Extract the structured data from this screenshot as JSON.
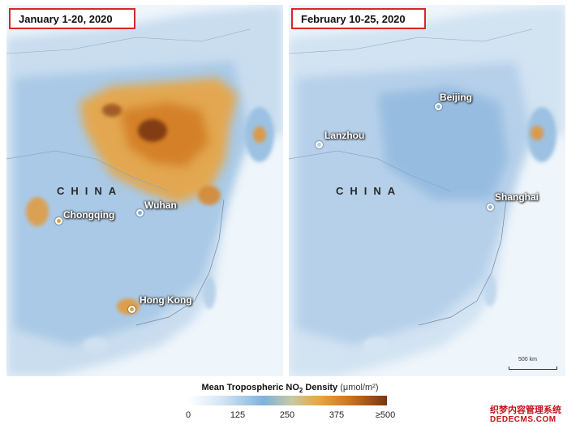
{
  "panels": {
    "left": {
      "date_label": "January 1-20, 2020",
      "country_label": "CHINA",
      "cities": [
        "Chongqing",
        "Wuhan",
        "Hong Kong"
      ]
    },
    "right": {
      "date_label": "February 10-25, 2020",
      "country_label": "CHINA",
      "cities": [
        "Lanzhou",
        "Beijing",
        "Shanghai"
      ],
      "scale_label": "500 km"
    }
  },
  "legend": {
    "title_prefix": "Mean Tropospheric NO",
    "title_subscript": "2",
    "title_suffix": " Density ",
    "unit": "(μmol/m²)",
    "ticks": [
      "0",
      "125",
      "250",
      "375",
      "≥500"
    ],
    "colors": [
      "#ffffff",
      "#7fb2db",
      "#e8a63f",
      "#7a3410"
    ]
  },
  "watermark": {
    "line1": "织梦内容管理系统",
    "line2": "DEDECMS.COM"
  }
}
